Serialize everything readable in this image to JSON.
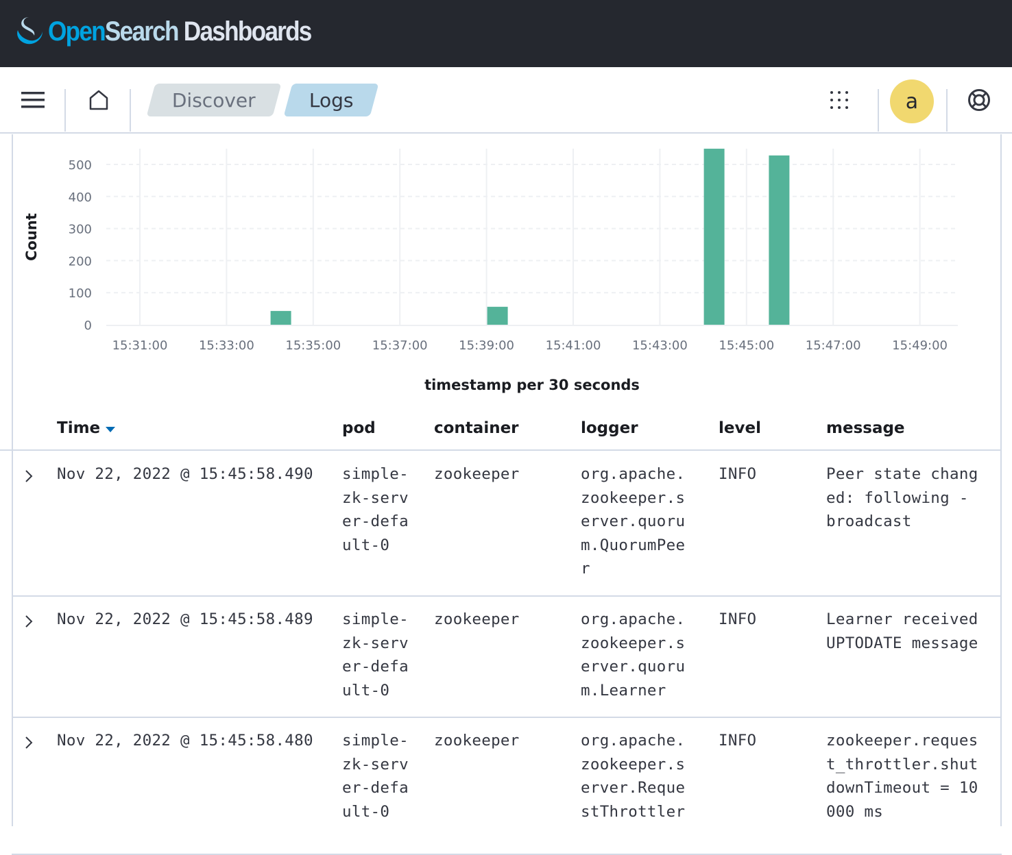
{
  "header": {
    "logo_open": "Open",
    "logo_search": "Search",
    "logo_dash": " Dashboards"
  },
  "nav": {
    "menu_icon": "hamburger-icon",
    "home_icon": "home-icon",
    "breadcrumbs": [
      "Discover",
      "Logs"
    ],
    "apps_icon": "grid-icon",
    "avatar": "a",
    "help_icon": "lifebuoy-icon"
  },
  "chart_data": {
    "type": "bar",
    "xlabel": "timestamp per 30 seconds",
    "ylabel": "Count",
    "ylim": [
      0,
      550
    ],
    "y_ticks": [
      "0",
      "100",
      "200",
      "300",
      "400",
      "500"
    ],
    "x_ticks": [
      "15:31:00",
      "15:33:00",
      "15:35:00",
      "15:37:00",
      "15:39:00",
      "15:41:00",
      "15:43:00",
      "15:45:00",
      "15:47:00",
      "15:49:00"
    ],
    "x": [
      "15:34:00",
      "15:39:00",
      "15:44:00",
      "15:45:30"
    ],
    "values": [
      43,
      56,
      549,
      528
    ],
    "color": "#54b399",
    "grid": true
  },
  "table": {
    "columns": [
      "Time",
      "pod",
      "container",
      "logger",
      "level",
      "message"
    ],
    "rows": [
      {
        "time": "Nov 22, 2022 @ 15:45:58.490",
        "pod": "simple-zk-server-default-0",
        "container": "zookeeper",
        "logger": "org.apache.zookeeper.server.quorum.QuorumPeer",
        "level": "INFO",
        "message": "Peer state changed: following - broadcast"
      },
      {
        "time": "Nov 22, 2022 @ 15:45:58.489",
        "pod": "simple-zk-server-default-0",
        "container": "zookeeper",
        "logger": "org.apache.zookeeper.server.quorum.Learner",
        "level": "INFO",
        "message": "Learner received UPTODATE message"
      },
      {
        "time": "Nov 22, 2022 @ 15:45:58.480",
        "pod": "simple-zk-server-default-0",
        "container": "zookeeper",
        "logger": "org.apache.zookeeper.server.RequestThrottler",
        "level": "INFO",
        "message": "zookeeper.request_throttler.shutdownTimeout = 10000 ms"
      }
    ]
  }
}
